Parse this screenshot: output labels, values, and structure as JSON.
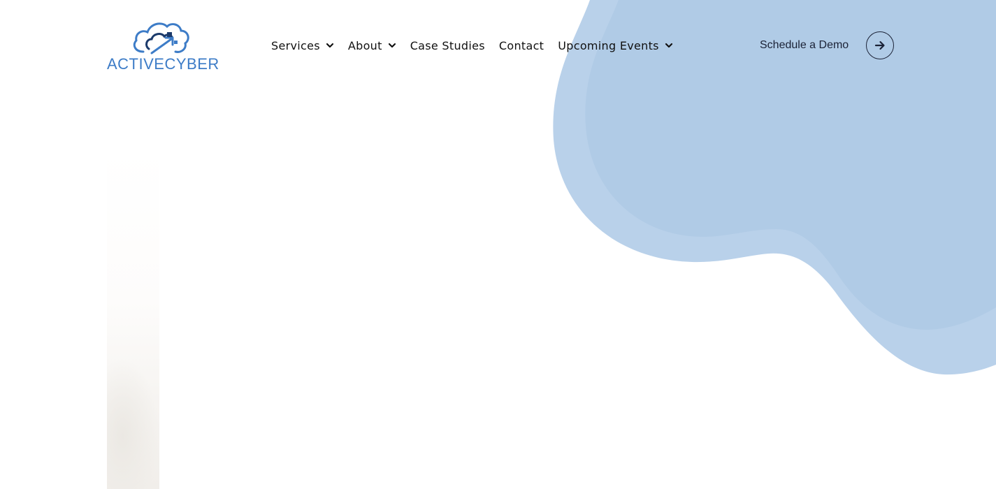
{
  "brand": {
    "logo_text_primary": "ACTIVE",
    "logo_text_secondary": "CYBER",
    "logo_color": "#3d7cc7",
    "logo_dark_color": "#1b3a6b"
  },
  "nav": {
    "items": [
      {
        "label": "Services",
        "has_dropdown": true
      },
      {
        "label": "About",
        "has_dropdown": true
      },
      {
        "label": "Case Studies",
        "has_dropdown": false
      },
      {
        "label": "Contact",
        "has_dropdown": false
      },
      {
        "label": "Upcoming Events",
        "has_dropdown": true
      }
    ]
  },
  "cta": {
    "label": "Schedule a Demo",
    "icon": "arrow-right-icon"
  },
  "colors": {
    "blob_light": "#b9d1ea",
    "blob_main": "#b0cbe6",
    "text": "#111111"
  }
}
